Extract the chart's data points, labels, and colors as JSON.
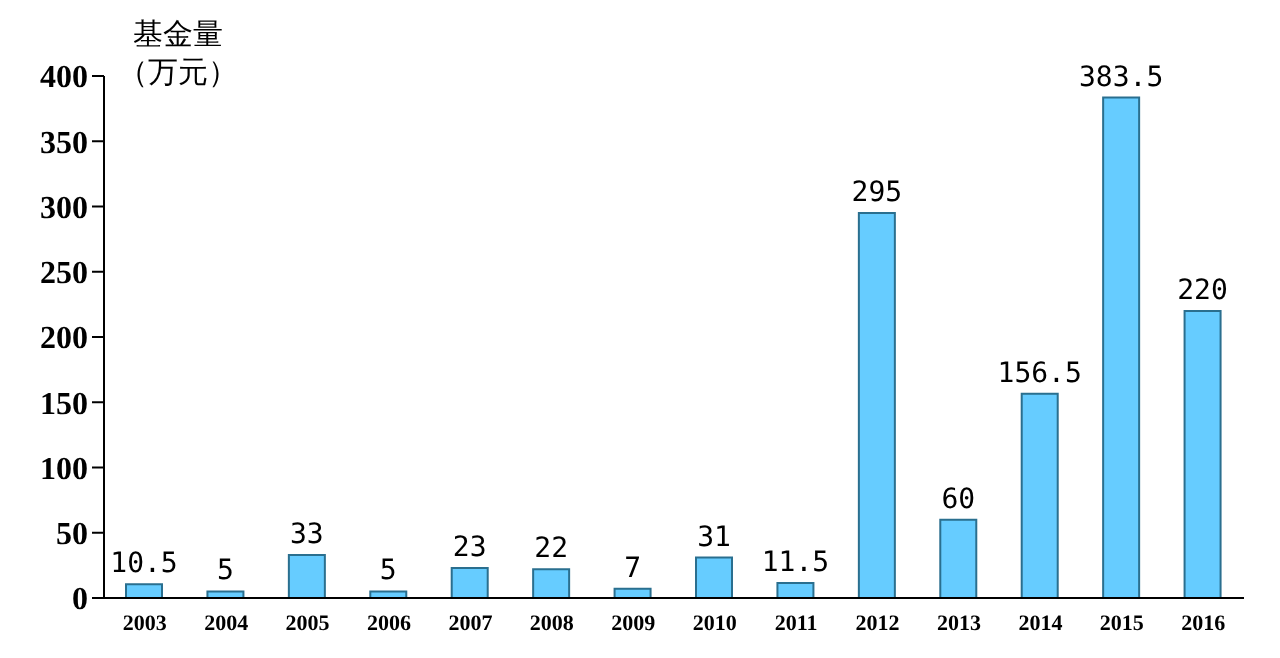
{
  "chart_data": {
    "type": "bar",
    "ylabel": "基金量（万元）",
    "categories": [
      "2003",
      "2004",
      "2005",
      "2006",
      "2007",
      "2008",
      "2009",
      "2010",
      "2011",
      "2012",
      "2013",
      "2014",
      "2015",
      "2016"
    ],
    "values": [
      10.5,
      5,
      33,
      5,
      23,
      22,
      7,
      31,
      11.5,
      295,
      60,
      156.5,
      383.5,
      220
    ],
    "color": "#66ccff",
    "ylim": [
      0,
      400
    ],
    "yticks": [
      0,
      50,
      100,
      150,
      200,
      250,
      300,
      350,
      400
    ],
    "grid": false,
    "data_labels": true
  }
}
